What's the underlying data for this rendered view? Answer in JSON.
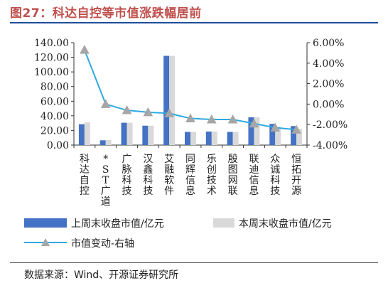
{
  "header": {
    "title": "图27：科达自控等市值涨跌幅居前"
  },
  "footer": {
    "source": "数据来源：Wind、开源证券研究所"
  },
  "colors": {
    "bar_last_week": "#4472c4",
    "bar_this_week": "#d9d9d9",
    "line": "#2eaae1",
    "marker": "#a6a6a6",
    "title": "#c0504d",
    "rule": "#1f4e9a"
  },
  "chart_data": {
    "type": "bar",
    "title": "",
    "categories": [
      "科达自控",
      "*ST广道",
      "广脉科技",
      "汉鑫科技",
      "艾融软件",
      "同辉信息",
      "乐创技术",
      "殷图网联",
      "联迪信息",
      "众诚科技",
      "恒拓开源"
    ],
    "series": [
      {
        "name": "上周末收盘市值/亿元",
        "type": "bar",
        "axis": "left",
        "values": [
          28.5,
          6.5,
          30.5,
          26.5,
          122.0,
          18.0,
          18.5,
          18.0,
          38.0,
          29.0,
          26.0
        ]
      },
      {
        "name": "本周末收盘市值/亿元",
        "type": "bar",
        "axis": "left",
        "values": [
          31.0,
          7.0,
          30.5,
          26.5,
          122.0,
          18.0,
          18.5,
          18.0,
          38.0,
          25.0,
          22.0
        ]
      },
      {
        "name": "市值变动-右轴",
        "type": "line",
        "axis": "right",
        "values": [
          5.3,
          0.0,
          -0.6,
          -0.8,
          -0.9,
          -1.4,
          -1.5,
          -1.5,
          -1.9,
          -2.3,
          -2.5
        ]
      }
    ],
    "y_left": {
      "ylim": [
        0,
        140
      ],
      "ticks": [
        0,
        20,
        40,
        60,
        80,
        100,
        120,
        140
      ],
      "tick_labels": [
        "0.00",
        "20.00",
        "40.00",
        "60.00",
        "80.00",
        "100.00",
        "120.00",
        "140.00"
      ]
    },
    "y_right": {
      "ylim": [
        -4,
        6
      ],
      "ticks": [
        -4,
        -2,
        0,
        2,
        4,
        6
      ],
      "tick_labels": [
        "-4.00%",
        "-2.00%",
        "0.00%",
        "2.00%",
        "4.00%",
        "6.00%"
      ]
    },
    "grid": false,
    "legend": "bottom"
  }
}
